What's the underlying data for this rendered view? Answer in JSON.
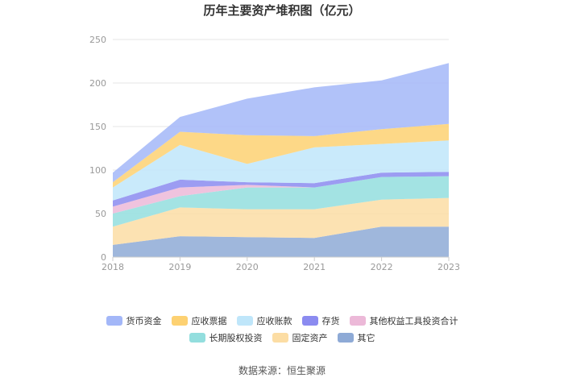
{
  "chart_data": {
    "type": "area",
    "stacked": true,
    "title": "历年主要资产堆积图（亿元）",
    "x": [
      "2018",
      "2019",
      "2020",
      "2021",
      "2022",
      "2023"
    ],
    "ylim": [
      0,
      250
    ],
    "yticks": [
      0,
      50,
      100,
      150,
      200,
      250
    ],
    "grid": true,
    "legend_position": "bottom",
    "series": [
      {
        "name": "其它",
        "color": "#8eaad6",
        "values": [
          14,
          24,
          23,
          22,
          35,
          35
        ]
      },
      {
        "name": "固定资产",
        "color": "#fcdda4",
        "values": [
          21,
          33,
          32,
          33,
          31,
          33
        ]
      },
      {
        "name": "长期股权投资",
        "color": "#93dede",
        "values": [
          15,
          13,
          25,
          25,
          26,
          25
        ]
      },
      {
        "name": "其他权益工具投资合计",
        "color": "#ecb9d8",
        "values": [
          8,
          10,
          3,
          0,
          0,
          0
        ]
      },
      {
        "name": "存货",
        "color": "#8b8bf0",
        "values": [
          7,
          9,
          3,
          5,
          5,
          5
        ]
      },
      {
        "name": "应收账款",
        "color": "#bfe6fa",
        "values": [
          15,
          40,
          21,
          41,
          33,
          36
        ]
      },
      {
        "name": "应收票据",
        "color": "#fdd172",
        "values": [
          6,
          15,
          33,
          13,
          17,
          19
        ]
      },
      {
        "name": "货币资金",
        "color": "#a3b7f8",
        "values": [
          11,
          17,
          42,
          56,
          56,
          70
        ]
      }
    ],
    "legend_order": [
      "货币资金",
      "应收票据",
      "应收账款",
      "存货",
      "其他权益工具投资合计",
      "长期股权投资",
      "固定资产",
      "其它"
    ]
  },
  "source": "数据来源：恒生聚源"
}
